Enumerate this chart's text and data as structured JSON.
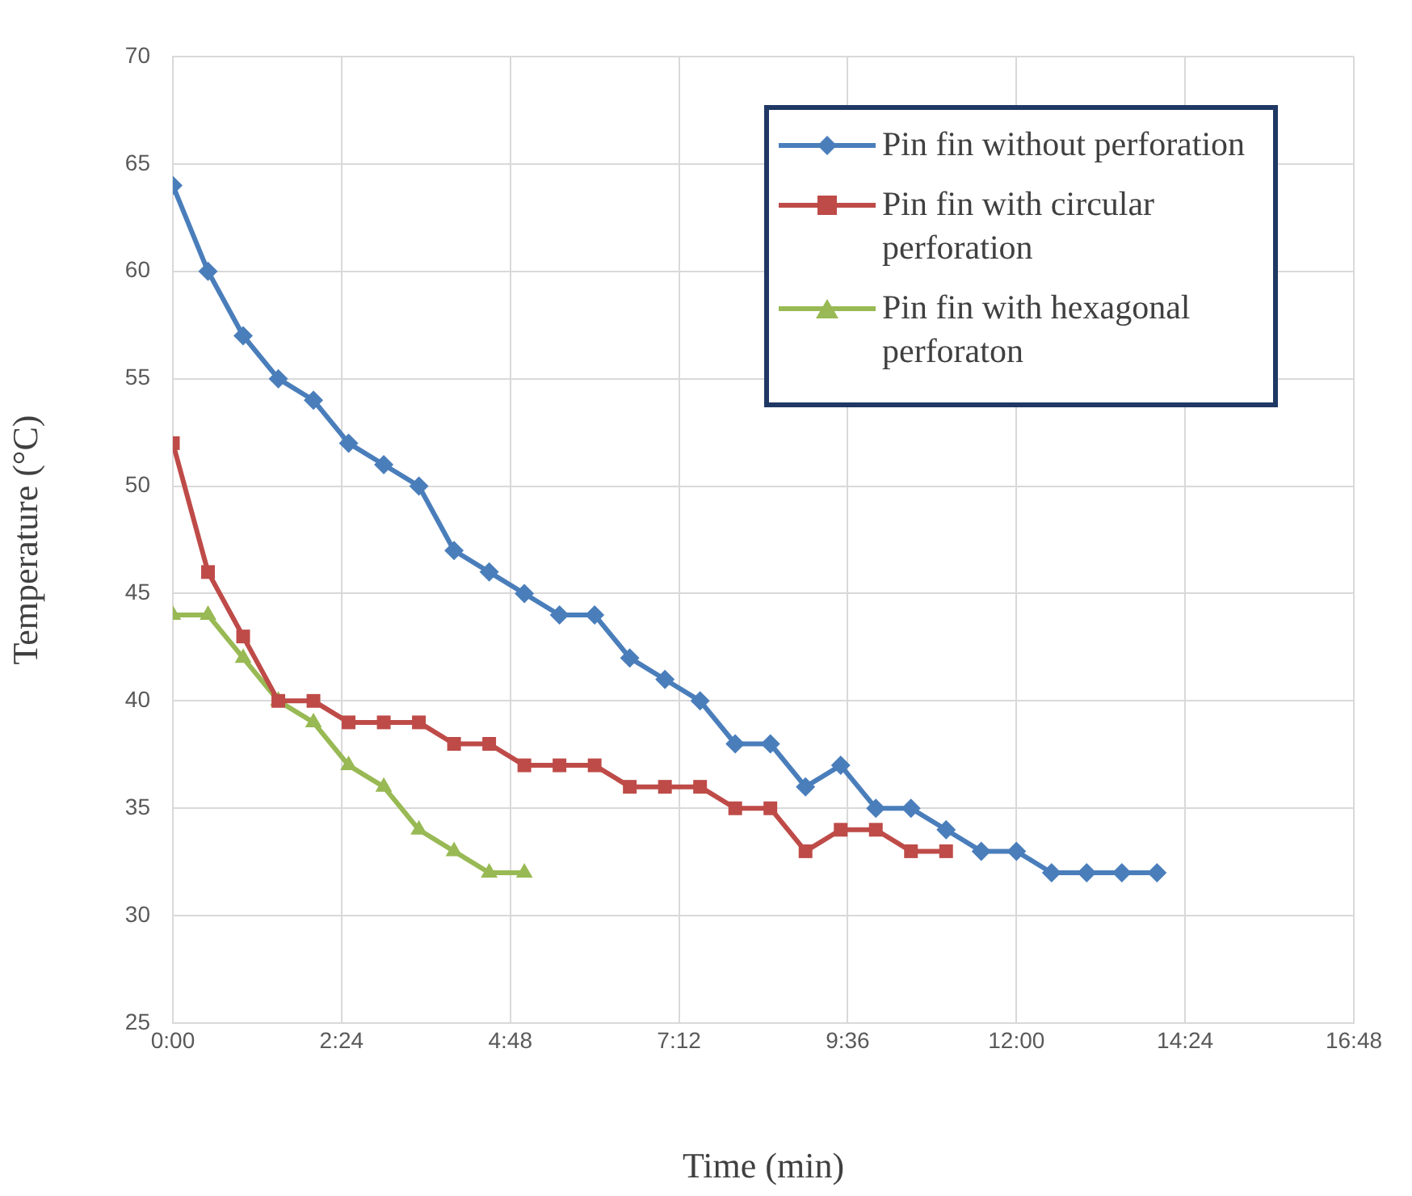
{
  "chart_data": {
    "type": "line",
    "xlabel": "Time (min)",
    "ylabel": "Temperature (°C)",
    "xlim": [
      0,
      16.8
    ],
    "xticks": [
      {
        "value": 0,
        "label": "0:00"
      },
      {
        "value": 2.4,
        "label": "2:24"
      },
      {
        "value": 4.8,
        "label": "4:48"
      },
      {
        "value": 7.2,
        "label": "7:12"
      },
      {
        "value": 9.6,
        "label": "9:36"
      },
      {
        "value": 12,
        "label": "12:00"
      },
      {
        "value": 14.4,
        "label": "14:24"
      },
      {
        "value": 16.8,
        "label": "16:48"
      }
    ],
    "ylim": [
      25,
      70
    ],
    "yticks": [
      25,
      30,
      35,
      40,
      45,
      50,
      55,
      60,
      65,
      70
    ],
    "grid": true,
    "legend": "top right",
    "line_style": "solid",
    "x": [
      0,
      0.5,
      1,
      1.5,
      2,
      2.5,
      3,
      3.5,
      4,
      4.5,
      5,
      5.5,
      6,
      6.5,
      7,
      7.5,
      8,
      8.5,
      9,
      9.5,
      10,
      10.5,
      11,
      11.5,
      12,
      12.5,
      13,
      13.5,
      14
    ],
    "series": [
      {
        "name": "Pin fin without perforation",
        "color": "#4a7ebb",
        "marker": "diamond",
        "values": [
          64,
          60,
          57,
          55,
          54,
          52,
          51,
          50,
          47,
          46,
          45,
          44,
          44,
          42,
          41,
          40,
          38,
          38,
          36,
          37,
          35,
          35,
          34,
          33,
          33,
          32,
          32,
          32,
          32
        ]
      },
      {
        "name": "Pin fin with circular perforation",
        "color": "#be4b48",
        "marker": "square",
        "x": [
          0,
          0.5,
          1,
          1.5,
          2,
          2.5,
          3,
          3.5,
          4,
          4.5,
          5,
          5.5,
          6,
          6.5,
          7,
          7.5,
          8,
          8.5,
          9,
          9.5,
          10,
          10.5,
          11
        ],
        "values": [
          52,
          46,
          43,
          40,
          40,
          39,
          39,
          39,
          38,
          38,
          37,
          37,
          37,
          36,
          36,
          36,
          35,
          35,
          33,
          34,
          34,
          33,
          33
        ]
      },
      {
        "name": "Pin fin with hexagonal perforaton",
        "color": "#98b954",
        "marker": "triangle",
        "x": [
          0,
          0.5,
          1,
          1.5,
          2,
          2.5,
          3,
          3.5,
          4,
          4.5,
          5
        ],
        "values": [
          44,
          44,
          42,
          40,
          39,
          37,
          36,
          34,
          33,
          32,
          32
        ]
      }
    ]
  }
}
